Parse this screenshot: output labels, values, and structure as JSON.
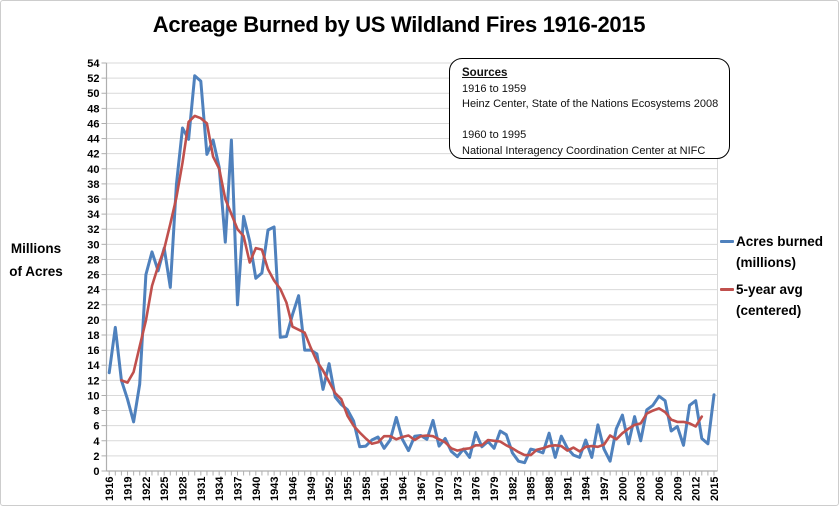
{
  "colors": {
    "blue": "#4F81BD",
    "red": "#C0504D",
    "gridline": "#D9D9D9",
    "axis": "#AFAFAF",
    "text": "#000000",
    "frame_border": "#CDCDCD"
  },
  "y_axis_title_lines": [
    "Millions",
    "of Acres"
  ],
  "sources_box": {
    "heading": "Sources",
    "lines": [
      "1916 to 1959",
      "Heinz Center, State of the Nations Ecosystems 2008",
      "",
      "1960 to 1995",
      "National Interagency Coordination Center at NIFC"
    ]
  },
  "legend": {
    "items": [
      {
        "label_line1": "Acres burned",
        "label_line2": "(millions)",
        "color": "#4F81BD"
      },
      {
        "label_line1": "5-year avg",
        "label_line2": "(centered)",
        "color": "#C0504D"
      }
    ]
  },
  "chart_data": {
    "type": "line",
    "title": "Acreage Burned by US Wildland Fires 1916-2015",
    "xlabel": "",
    "ylabel": "Millions of Acres",
    "ylim": [
      0,
      54
    ],
    "y_tick_step": 2,
    "y_tick_labels": [
      "0",
      "2",
      "4",
      "6",
      "8",
      "10",
      "12",
      "14",
      "16",
      "18",
      "20",
      "22",
      "24",
      "26",
      "28",
      "30",
      "32",
      "34",
      "36",
      "38",
      "40",
      "42",
      "44",
      "46",
      "48",
      "50",
      "52",
      "54"
    ],
    "x_start": 1916,
    "x_end": 2015,
    "x_tick_labels": [
      "1916",
      "1919",
      "1922",
      "1925",
      "1928",
      "1931",
      "1934",
      "1937",
      "1940",
      "1943",
      "1946",
      "1949",
      "1952",
      "1955",
      "1958",
      "1961",
      "1964",
      "1967",
      "1970",
      "1973",
      "1976",
      "1979",
      "1982",
      "1985",
      "1988",
      "1991",
      "1994",
      "1997",
      "2000",
      "2003",
      "2006",
      "2009",
      "2012",
      "2015"
    ],
    "grid": "horizontal",
    "legend_position": "right",
    "series": [
      {
        "name": "Acres burned (millions)",
        "color": "#4F81BD",
        "x_start": 1916,
        "values": [
          13,
          19,
          12,
          9.5,
          6.5,
          11.5,
          26,
          29,
          26.5,
          29.5,
          24.3,
          37.9,
          45.4,
          43.9,
          52.3,
          51.6,
          41.9,
          43.8,
          40.2,
          30.3,
          43.8,
          22,
          33.7,
          30.4,
          25.5,
          26.2,
          31.9,
          32.3,
          17.7,
          17.8,
          20.7,
          23.2,
          16,
          16,
          15.5,
          10.8,
          14.2,
          9.8,
          8.8,
          8.1,
          6.6,
          3.2,
          3.3,
          4.1,
          4.5,
          3,
          4.1,
          7.1,
          4.2,
          2.7,
          4.6,
          4.7,
          4.2,
          6.7,
          3.3,
          4.3,
          2.6,
          1.9,
          2.9,
          1.8,
          5.1,
          3.2,
          3.9,
          3,
          5.3,
          4.8,
          2.4,
          1.3,
          1.1,
          2.9,
          2.7,
          2.4,
          5,
          1.8,
          4.6,
          3,
          2.1,
          1.8,
          4.1,
          1.8,
          6.1,
          2.9,
          1.3,
          5.6,
          7.4,
          3.6,
          7.2,
          4,
          8.1,
          8.7,
          9.9,
          9.3,
          5.3,
          5.9,
          3.4,
          8.7,
          9.3,
          4.3,
          3.6,
          10.1
        ]
      },
      {
        "name": "5-year avg (centered)",
        "color": "#C0504D",
        "x_start": 1918,
        "values": [
          12,
          11.7,
          13.1,
          16.5,
          19.9,
          24.5,
          27.1,
          29.4,
          32.7,
          36.2,
          40.8,
          46.2,
          47,
          46.7,
          46,
          41.6,
          40,
          36,
          34,
          32,
          31.1,
          27.6,
          29.5,
          29.3,
          26.7,
          25.2,
          24.1,
          22.3,
          19.1,
          18.7,
          18.3,
          16.3,
          14.5,
          13.3,
          11.8,
          10.3,
          9.5,
          7.3,
          6,
          5.1,
          4.3,
          3.6,
          3.8,
          4.6,
          4.6,
          4.2,
          4.5,
          4.7,
          4.1,
          4.6,
          4.7,
          4.6,
          4.2,
          3.8,
          3,
          2.7,
          2.9,
          3,
          3.4,
          3.4,
          4.1,
          4,
          3.9,
          3.4,
          3,
          2.5,
          2.1,
          2.1,
          2.8,
          3,
          3.3,
          3.4,
          3.3,
          2.7,
          3.1,
          2.6,
          3.2,
          3.3,
          3.2,
          3.5,
          4.7,
          4.2,
          5,
          5.6,
          6.1,
          6.3,
          7.6,
          8,
          8.3,
          7.8,
          6.8,
          6.5,
          6.5,
          6.3,
          5.9,
          7.2
        ]
      }
    ]
  }
}
